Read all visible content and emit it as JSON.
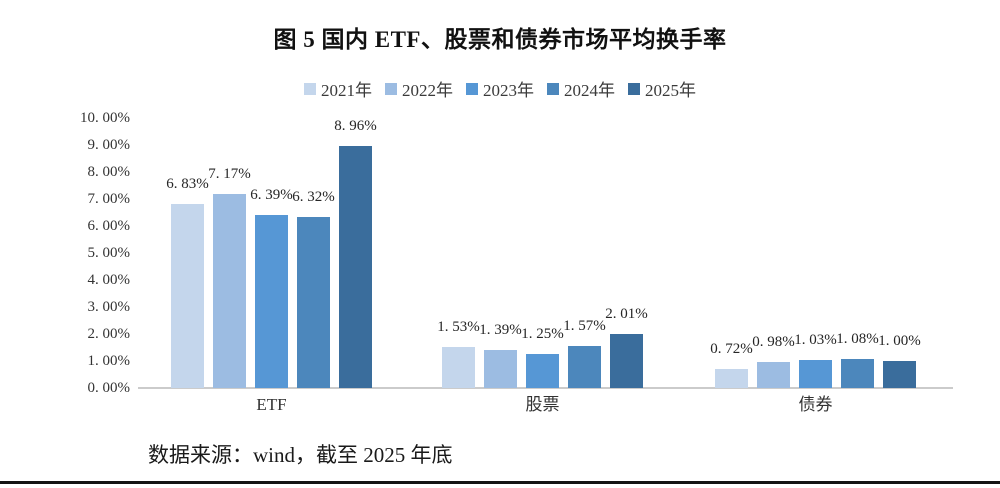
{
  "source_note": "数据来源：wind，截至 2025 年底",
  "colors": {
    "axis_line": "#cbcbcb",
    "bottom_rule": "#141414",
    "text": "#262626",
    "series_palette": [
      "#c4d6ec",
      "#9cbce2",
      "#5697d5",
      "#4c87bc",
      "#3a6d9c"
    ]
  },
  "chart_data": {
    "type": "bar",
    "title": "图 5 国内 ETF、股票和债券市场平均换手率",
    "categories": [
      "ETF",
      "股票",
      "债券"
    ],
    "series": [
      {
        "name": "2021年",
        "color": "#c4d6ec",
        "values": [
          6.83,
          1.53,
          0.72
        ],
        "labels": [
          "6. 83%",
          "1. 53%",
          "0. 72%"
        ]
      },
      {
        "name": "2022年",
        "color": "#9cbce2",
        "values": [
          7.17,
          1.39,
          0.98
        ],
        "labels": [
          "7. 17%",
          "1. 39%",
          "0. 98%"
        ]
      },
      {
        "name": "2023年",
        "color": "#5697d5",
        "values": [
          6.39,
          1.25,
          1.03
        ],
        "labels": [
          "6. 39%",
          "1. 25%",
          "1. 03%"
        ]
      },
      {
        "name": "2024年",
        "color": "#4c87bc",
        "values": [
          6.32,
          1.57,
          1.08
        ],
        "labels": [
          "6. 32%",
          "1. 57%",
          "1. 08%"
        ]
      },
      {
        "name": "2025年",
        "color": "#3a6d9c",
        "values": [
          8.96,
          2.01,
          1.0
        ],
        "labels": [
          "8. 96%",
          "2. 01%",
          "1. 00%"
        ]
      }
    ],
    "ylim": [
      0,
      10
    ],
    "ytick_step": 1,
    "ytick_labels": [
      "10. 00%",
      "9. 00%",
      "8. 00%",
      "7. 00%",
      "6. 00%",
      "5. 00%",
      "4. 00%",
      "3. 00%",
      "2. 00%",
      "1. 00%",
      "0. 00%"
    ],
    "grid": false,
    "legend_position": "top-center",
    "data_labels_shown": true
  }
}
